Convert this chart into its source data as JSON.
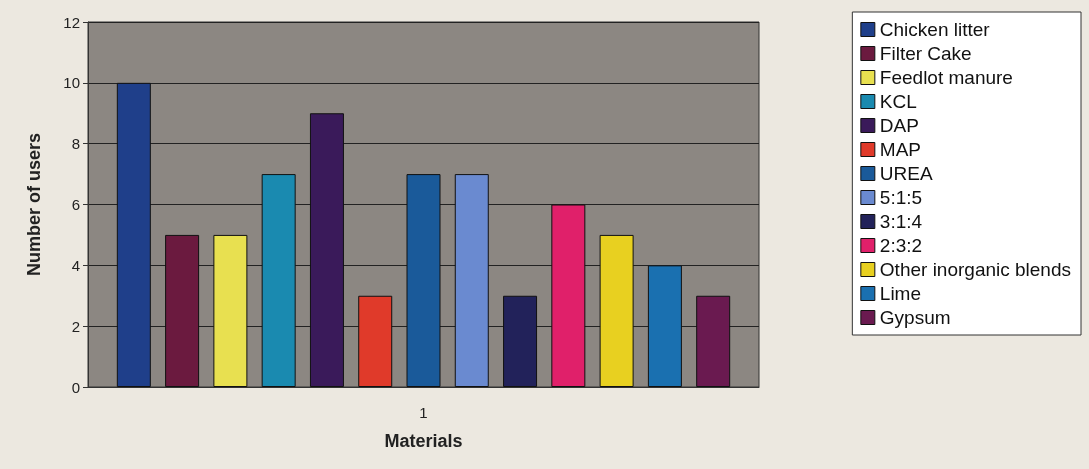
{
  "chart_data": {
    "type": "bar",
    "xlabel": "Materials",
    "ylabel": "Number of users",
    "categories": [
      "1"
    ],
    "ylim": [
      0,
      12
    ],
    "yticks": [
      0,
      2,
      4,
      6,
      8,
      10,
      12
    ],
    "grid": "y",
    "legend": "right",
    "series": [
      {
        "name": "Chicken litter",
        "color": "#1f3f8a",
        "values": [
          10
        ]
      },
      {
        "name": "Filter Cake",
        "color": "#6b1a3f",
        "values": [
          5
        ]
      },
      {
        "name": "Feedlot manure",
        "color": "#e8e050",
        "values": [
          5
        ]
      },
      {
        "name": "KCL",
        "color": "#1a8ab0",
        "values": [
          7
        ]
      },
      {
        "name": "DAP",
        "color": "#3a1a5a",
        "values": [
          9
        ]
      },
      {
        "name": "MAP",
        "color": "#e03a2a",
        "values": [
          3
        ]
      },
      {
        "name": "UREA",
        "color": "#1a5a9a",
        "values": [
          7
        ]
      },
      {
        "name": "5:1:5",
        "color": "#6a8ad0",
        "values": [
          7
        ]
      },
      {
        "name": "3:1:4",
        "color": "#22225a",
        "values": [
          3
        ]
      },
      {
        "name": "2:3:2",
        "color": "#e0206a",
        "values": [
          6
        ]
      },
      {
        "name": "Other inorganic blends",
        "color": "#e8d020",
        "values": [
          5
        ]
      },
      {
        "name": "Lime",
        "color": "#1a70b0",
        "values": [
          4
        ]
      },
      {
        "name": "Gypsum",
        "color": "#6a1a50",
        "values": [
          3
        ]
      }
    ]
  }
}
